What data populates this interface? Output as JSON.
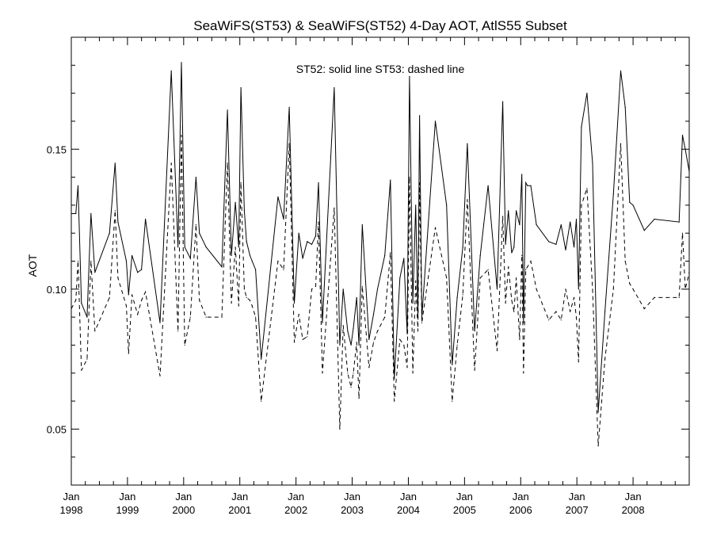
{
  "chart_data": {
    "type": "line",
    "title": "SeaWiFS(ST53) & SeaWiFS(ST52) 4-Day AOT, AtlS55 Subset",
    "annotation": "ST52: solid line   ST53: dashed line",
    "xlabel": "",
    "ylabel": "AOT",
    "xlim": [
      1998.0,
      2009.0
    ],
    "ylim": [
      0.03,
      0.19
    ],
    "grid": false,
    "x_ticks": [
      {
        "value": 1998.0,
        "month": "Jan",
        "year": "1998"
      },
      {
        "value": 1999.0,
        "month": "Jan",
        "year": "1999"
      },
      {
        "value": 2000.0,
        "month": "Jan",
        "year": "2000"
      },
      {
        "value": 2001.0,
        "month": "Jan",
        "year": "2001"
      },
      {
        "value": 2002.0,
        "month": "Jan",
        "year": "2002"
      },
      {
        "value": 2003.0,
        "month": "Jan",
        "year": "2003"
      },
      {
        "value": 2004.0,
        "month": "Jan",
        "year": "2004"
      },
      {
        "value": 2005.0,
        "month": "Jan",
        "year": "2005"
      },
      {
        "value": 2006.0,
        "month": "Jan",
        "year": "2006"
      },
      {
        "value": 2007.0,
        "month": "Jan",
        "year": "2007"
      },
      {
        "value": 2008.0,
        "month": "Jan",
        "year": "2008"
      }
    ],
    "y_ticks": [
      {
        "value": 0.05,
        "label": "0.05"
      },
      {
        "value": 0.1,
        "label": "0.10"
      },
      {
        "value": 0.15,
        "label": "0.15"
      }
    ],
    "series": [
      {
        "name": "ST52",
        "style": "solid",
        "x": [
          1998.0,
          1998.08,
          1998.12,
          1998.18,
          1998.28,
          1998.35,
          1998.42,
          1998.68,
          1998.78,
          1998.83,
          1998.98,
          1999.02,
          1999.08,
          1999.18,
          1999.25,
          1999.32,
          1999.58,
          1999.78,
          1999.9,
          1999.96,
          2000.02,
          2000.12,
          2000.22,
          2000.28,
          2000.4,
          2000.68,
          2000.78,
          2000.85,
          2000.92,
          2000.98,
          2001.02,
          2001.08,
          2001.12,
          2001.18,
          2001.22,
          2001.28,
          2001.38,
          2001.68,
          2001.78,
          2001.88,
          2001.97,
          2002.05,
          2002.12,
          2002.2,
          2002.28,
          2002.35,
          2002.4,
          2002.47,
          2002.68,
          2002.78,
          2002.84,
          2002.92,
          2002.98,
          2003.02,
          2003.08,
          2003.12,
          2003.18,
          2003.3,
          2003.38,
          2003.45,
          2003.58,
          2003.68,
          2003.75,
          2003.85,
          2003.92,
          2003.98,
          2004.02,
          2004.08,
          2004.13,
          2004.17,
          2004.2,
          2004.24,
          2004.48,
          2004.68,
          2004.78,
          2004.87,
          2004.97,
          2005.05,
          2005.18,
          2005.28,
          2005.42,
          2005.58,
          2005.68,
          2005.73,
          2005.78,
          2005.84,
          2005.88,
          2005.92,
          2005.98,
          2006.02,
          2006.05,
          2006.09,
          2006.12,
          2006.18,
          2006.28,
          2006.5,
          2006.63,
          2006.72,
          2006.8,
          2006.88,
          2006.95,
          2006.99,
          2007.03,
          2007.08,
          2007.18,
          2007.28,
          2007.38,
          2007.5,
          2007.65,
          2007.78,
          2007.86,
          2007.94,
          2008.0,
          2008.2,
          2008.38,
          2008.82,
          2008.88,
          2008.93,
          2009.0
        ],
        "values": [
          0.127,
          0.127,
          0.137,
          0.095,
          0.09,
          0.127,
          0.106,
          0.12,
          0.145,
          0.124,
          0.11,
          0.098,
          0.112,
          0.106,
          0.107,
          0.125,
          0.088,
          0.178,
          0.115,
          0.181,
          0.115,
          0.111,
          0.14,
          0.12,
          0.115,
          0.108,
          0.164,
          0.112,
          0.131,
          0.115,
          0.172,
          0.128,
          0.117,
          0.112,
          0.11,
          0.107,
          0.075,
          0.133,
          0.125,
          0.165,
          0.095,
          0.12,
          0.111,
          0.117,
          0.116,
          0.119,
          0.138,
          0.088,
          0.172,
          0.08,
          0.1,
          0.085,
          0.08,
          0.086,
          0.097,
          0.08,
          0.123,
          0.082,
          0.091,
          0.1,
          0.112,
          0.139,
          0.068,
          0.104,
          0.111,
          0.084,
          0.176,
          0.095,
          0.13,
          0.09,
          0.162,
          0.09,
          0.16,
          0.13,
          0.073,
          0.097,
          0.115,
          0.152,
          0.085,
          0.112,
          0.137,
          0.1,
          0.167,
          0.116,
          0.128,
          0.113,
          0.115,
          0.128,
          0.123,
          0.141,
          0.088,
          0.138,
          0.137,
          0.137,
          0.123,
          0.117,
          0.116,
          0.123,
          0.114,
          0.124,
          0.115,
          0.125,
          0.1,
          0.158,
          0.17,
          0.145,
          0.056,
          0.092,
          0.134,
          0.178,
          0.165,
          0.131,
          0.13,
          0.121,
          0.125,
          0.124,
          0.155,
          0.15,
          0.142
        ]
      },
      {
        "name": "ST53",
        "style": "dashed",
        "x": [
          1998.0,
          1998.08,
          1998.12,
          1998.18,
          1998.28,
          1998.35,
          1998.42,
          1998.68,
          1998.78,
          1998.83,
          1998.98,
          1999.02,
          1999.08,
          1999.18,
          1999.25,
          1999.32,
          1999.58,
          1999.78,
          1999.9,
          1999.96,
          2000.02,
          2000.12,
          2000.22,
          2000.28,
          2000.4,
          2000.68,
          2000.78,
          2000.85,
          2000.92,
          2000.98,
          2001.02,
          2001.08,
          2001.12,
          2001.18,
          2001.22,
          2001.28,
          2001.38,
          2001.68,
          2001.78,
          2001.88,
          2001.97,
          2002.05,
          2002.12,
          2002.2,
          2002.28,
          2002.35,
          2002.4,
          2002.47,
          2002.68,
          2002.78,
          2002.84,
          2002.92,
          2002.98,
          2003.02,
          2003.08,
          2003.12,
          2003.18,
          2003.3,
          2003.38,
          2003.45,
          2003.58,
          2003.68,
          2003.75,
          2003.85,
          2003.92,
          2003.98,
          2004.02,
          2004.08,
          2004.13,
          2004.17,
          2004.2,
          2004.24,
          2004.48,
          2004.68,
          2004.78,
          2004.87,
          2004.97,
          2005.05,
          2005.18,
          2005.28,
          2005.42,
          2005.58,
          2005.68,
          2005.73,
          2005.78,
          2005.84,
          2005.88,
          2005.92,
          2005.98,
          2006.02,
          2006.05,
          2006.09,
          2006.12,
          2006.18,
          2006.28,
          2006.5,
          2006.63,
          2006.72,
          2006.8,
          2006.88,
          2006.95,
          2006.99,
          2007.03,
          2007.08,
          2007.18,
          2007.28,
          2007.38,
          2007.5,
          2007.65,
          2007.78,
          2007.86,
          2007.94,
          2008.0,
          2008.2,
          2008.38,
          2008.82,
          2008.88,
          2008.93,
          2009.0
        ],
        "values": [
          0.093,
          0.096,
          0.11,
          0.071,
          0.075,
          0.11,
          0.085,
          0.097,
          0.128,
          0.104,
          0.094,
          0.077,
          0.098,
          0.091,
          0.096,
          0.099,
          0.069,
          0.145,
          0.085,
          0.155,
          0.08,
          0.09,
          0.123,
          0.096,
          0.09,
          0.09,
          0.145,
          0.095,
          0.115,
          0.094,
          0.138,
          0.1,
          0.097,
          0.096,
          0.094,
          0.09,
          0.06,
          0.11,
          0.107,
          0.152,
          0.081,
          0.091,
          0.082,
          0.083,
          0.1,
          0.101,
          0.124,
          0.07,
          0.129,
          0.05,
          0.087,
          0.07,
          0.065,
          0.07,
          0.081,
          0.061,
          0.101,
          0.072,
          0.081,
          0.085,
          0.09,
          0.113,
          0.06,
          0.082,
          0.08,
          0.072,
          0.14,
          0.07,
          0.103,
          0.085,
          0.138,
          0.088,
          0.122,
          0.104,
          0.06,
          0.08,
          0.098,
          0.132,
          0.071,
          0.104,
          0.107,
          0.078,
          0.126,
          0.095,
          0.108,
          0.096,
          0.092,
          0.104,
          0.082,
          0.112,
          0.07,
          0.107,
          0.108,
          0.11,
          0.1,
          0.089,
          0.092,
          0.089,
          0.1,
          0.092,
          0.097,
          0.09,
          0.074,
          0.13,
          0.136,
          0.1,
          0.044,
          0.075,
          0.1,
          0.152,
          0.11,
          0.102,
          0.1,
          0.093,
          0.097,
          0.097,
          0.12,
          0.1,
          0.106
        ]
      }
    ]
  }
}
